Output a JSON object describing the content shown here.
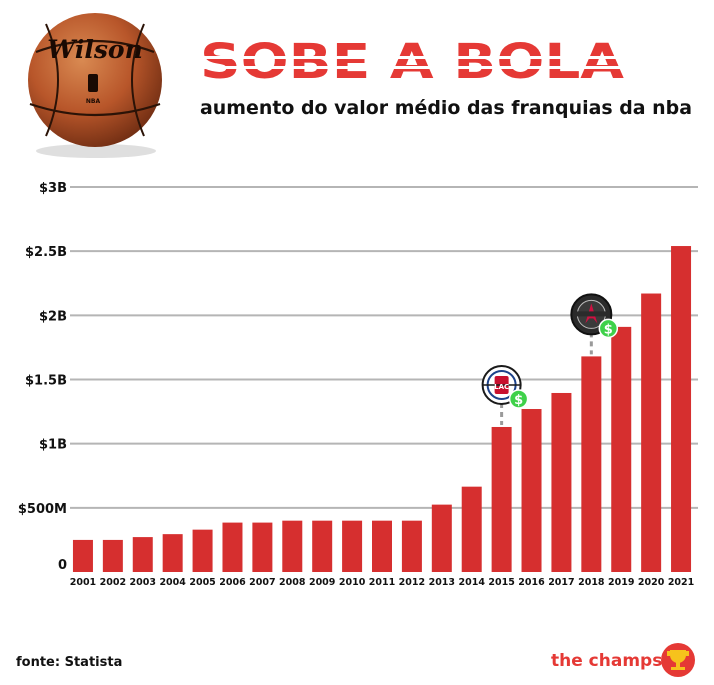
{
  "header": {
    "title": "SOBE A BOLA",
    "subtitle": "aumento do valor médio das franquias da nba"
  },
  "ball": {
    "brand": "Wilson",
    "league": "NBA"
  },
  "footer": {
    "source": "fonte: Statista",
    "brand": "the champs"
  },
  "colors": {
    "bar": "#d62f2f",
    "title": "#e53935",
    "grid": "#b5b5b5",
    "text": "#111111",
    "dollar_badge": "#3fd14a",
    "trophy_bg": "#e53935",
    "trophy": "#f6c21c"
  },
  "annotations": [
    {
      "year": "2015",
      "team": "Clippers",
      "icon": "clippers-logo-icon",
      "badge": "$"
    },
    {
      "year": "2018",
      "team": "Houston Rockets",
      "icon": "rockets-logo-icon",
      "badge": "$"
    }
  ],
  "chart_data": {
    "type": "bar",
    "title": "SOBE A BOLA",
    "subtitle": "aumento do valor médio das franquias da nba",
    "xlabel": "",
    "ylabel": "",
    "ylim": [
      0,
      3000
    ],
    "unit": "USD millions",
    "grid": true,
    "yticks": [
      {
        "value": 0,
        "label": "0"
      },
      {
        "value": 500,
        "label": "$500M"
      },
      {
        "value": 1000,
        "label": "$1B"
      },
      {
        "value": 1500,
        "label": "$1.5B"
      },
      {
        "value": 2000,
        "label": "$2B"
      },
      {
        "value": 2500,
        "label": "$2.5B"
      },
      {
        "value": 3000,
        "label": "$3B"
      }
    ],
    "categories": [
      "2001",
      "2002",
      "2003",
      "2004",
      "2005",
      "2006",
      "2007",
      "2008",
      "2009",
      "2010",
      "2011",
      "2012",
      "2013",
      "2014",
      "2015",
      "2016",
      "2017",
      "2018",
      "2019",
      "2020",
      "2021"
    ],
    "values": [
      250,
      250,
      272,
      295,
      330,
      385,
      385,
      400,
      400,
      400,
      400,
      400,
      525,
      665,
      1130,
      1270,
      1395,
      1680,
      1910,
      2170,
      2540
    ]
  }
}
